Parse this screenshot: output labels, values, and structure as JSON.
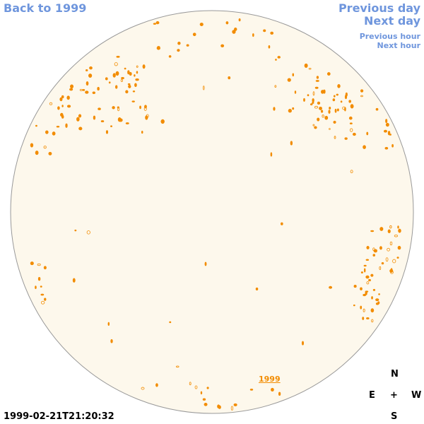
{
  "nav": {
    "back": "Back to 1999",
    "previous_day": "Previous day",
    "next_day": "Next day",
    "previous_hour": "Previous hour",
    "next_hour": "Next hour"
  },
  "disk_label": "1999",
  "compass": {
    "north": "N",
    "east": "E",
    "center": "+",
    "west": "W",
    "south": "S"
  },
  "timestamp": "1999-02-21T21:20:32"
}
